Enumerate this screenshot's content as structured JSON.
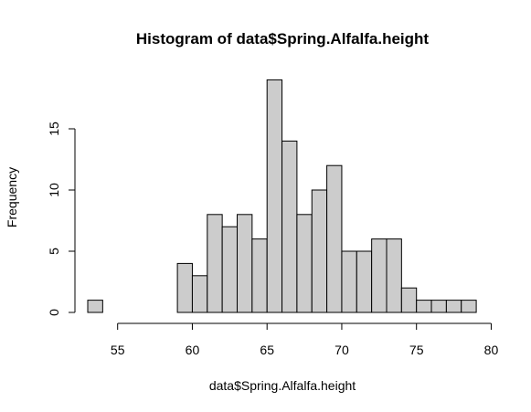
{
  "chart_data": {
    "type": "bar",
    "title": "Histogram of data$Spring.Alfalfa.height",
    "xlabel": "data$Spring.Alfalfa.height",
    "ylabel": "Frequency",
    "bin_width": 1,
    "bins": [
      {
        "start": 53,
        "end": 54,
        "count": 1
      },
      {
        "start": 54,
        "end": 55,
        "count": 0
      },
      {
        "start": 55,
        "end": 56,
        "count": 0
      },
      {
        "start": 56,
        "end": 57,
        "count": 0
      },
      {
        "start": 57,
        "end": 58,
        "count": 0
      },
      {
        "start": 58,
        "end": 59,
        "count": 0
      },
      {
        "start": 59,
        "end": 60,
        "count": 4
      },
      {
        "start": 60,
        "end": 61,
        "count": 3
      },
      {
        "start": 61,
        "end": 62,
        "count": 8
      },
      {
        "start": 62,
        "end": 63,
        "count": 7
      },
      {
        "start": 63,
        "end": 64,
        "count": 8
      },
      {
        "start": 64,
        "end": 65,
        "count": 6
      },
      {
        "start": 65,
        "end": 66,
        "count": 19
      },
      {
        "start": 66,
        "end": 67,
        "count": 14
      },
      {
        "start": 67,
        "end": 68,
        "count": 8
      },
      {
        "start": 68,
        "end": 69,
        "count": 10
      },
      {
        "start": 69,
        "end": 70,
        "count": 12
      },
      {
        "start": 70,
        "end": 71,
        "count": 5
      },
      {
        "start": 71,
        "end": 72,
        "count": 5
      },
      {
        "start": 72,
        "end": 73,
        "count": 6
      },
      {
        "start": 73,
        "end": 74,
        "count": 6
      },
      {
        "start": 74,
        "end": 75,
        "count": 2
      },
      {
        "start": 75,
        "end": 76,
        "count": 1
      },
      {
        "start": 76,
        "end": 77,
        "count": 1
      },
      {
        "start": 77,
        "end": 78,
        "count": 1
      },
      {
        "start": 78,
        "end": 79,
        "count": 1
      }
    ],
    "xlim": [
      53,
      79
    ],
    "ylim": [
      0,
      19
    ],
    "x_ticks": [
      55,
      60,
      65,
      70,
      75,
      80
    ],
    "y_ticks": [
      0,
      5,
      10,
      15
    ],
    "bar_color": "#cccccc",
    "grid": false
  }
}
